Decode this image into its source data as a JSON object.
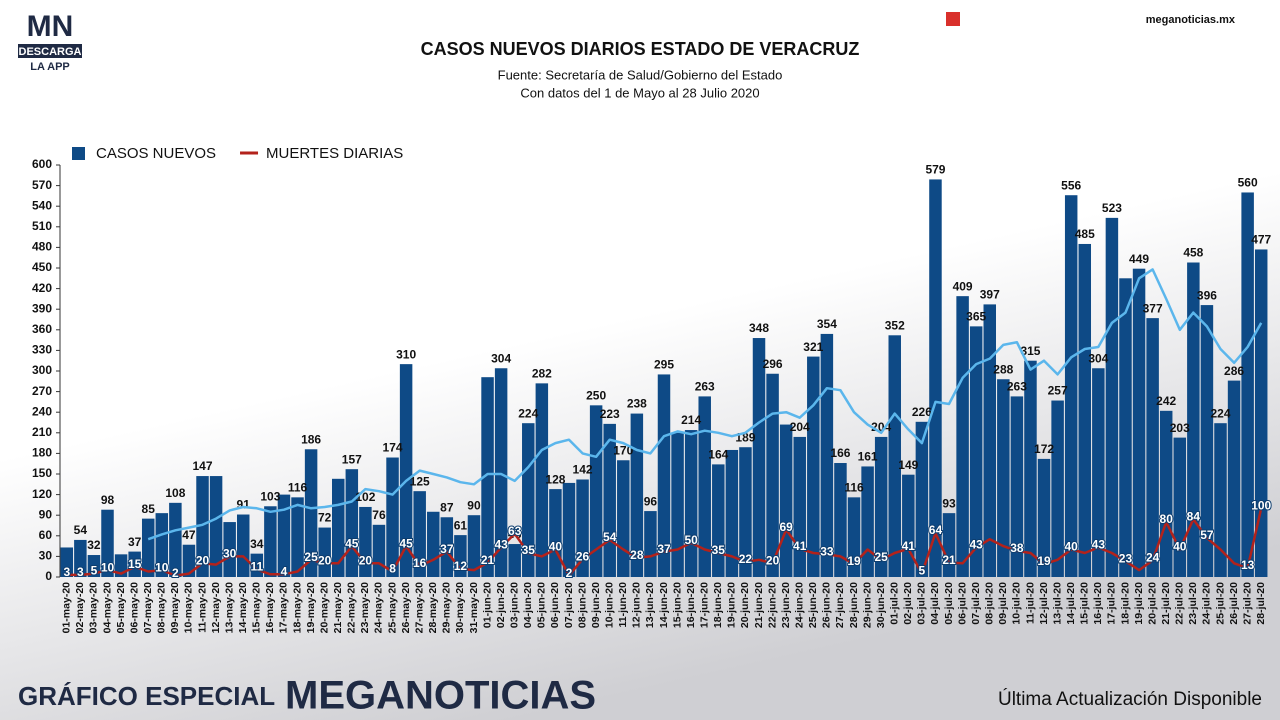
{
  "brand": {
    "logo": "MN",
    "logo_sub": "DESCARGA",
    "logo_app": "LA APP",
    "site": "meganoticias.mx"
  },
  "footer": {
    "left": "GRÁFICO ESPECIAL",
    "brand": "MEGANOTICIAS",
    "right": "Última Actualización Disponible"
  },
  "chart_data": {
    "type": "bar",
    "title": "CASOS NUEVOS DIARIOS ESTADO DE VERACRUZ",
    "subtitle": [
      "Fuente: Secretaría de Salud/Gobierno del Estado",
      "Con datos del 1 de Mayo al 28 Julio 2020"
    ],
    "categories": [
      "01-may-20",
      "02-may-20",
      "03-may-20",
      "04-may-20",
      "05-may-20",
      "06-may-20",
      "07-may-20",
      "08-may-20",
      "09-may-20",
      "10-may-20",
      "11-may-20",
      "12-may-20",
      "13-may-20",
      "14-may-20",
      "15-may-20",
      "16-may-20",
      "17-may-20",
      "18-may-20",
      "19-may-20",
      "20-may-20",
      "21-may-20",
      "22-may-20",
      "23-may-20",
      "24-may-20",
      "25-may-20",
      "26-may-20",
      "27-may-20",
      "28-may-20",
      "29-may-20",
      "30-may-20",
      "31-may-20",
      "01-jun-20",
      "02-jun-20",
      "03-jun-20",
      "04-jun-20",
      "05-jun-20",
      "06-jun-20",
      "07-jun-20",
      "08-jun-20",
      "09-jun-20",
      "10-jun-20",
      "11-jun-20",
      "12-jun-20",
      "13-jun-20",
      "14-jun-20",
      "15-jun-20",
      "16-jun-20",
      "17-jun-20",
      "18-jun-20",
      "19-jun-20",
      "20-jun-20",
      "21-jun-20",
      "22-jun-20",
      "23-jun-20",
      "24-jun-20",
      "25-jun-20",
      "26-jun-20",
      "27-jun-20",
      "28-jun-20",
      "29-jun-20",
      "30-jun-20",
      "01-jul-20",
      "02-jul-20",
      "03-jul-20",
      "04-jul-20",
      "05-jul-20",
      "06-jul-20",
      "07-jul-20",
      "08-jul-20",
      "09-jul-20",
      "10-jul-20",
      "11-jul-20",
      "12-jul-20",
      "13-jul-20",
      "14-jul-20",
      "15-jul-20",
      "16-jul-20",
      "17-jul-20",
      "18-jul-20",
      "19-jul-20",
      "20-jul-20",
      "21-jul-20",
      "22-jul-20",
      "23-jul-20",
      "24-jul-20",
      "25-jul-20",
      "26-jul-20",
      "27-jul-20",
      "28-jul-20"
    ],
    "series": [
      {
        "name": "CASOS NUEVOS",
        "type": "bar",
        "color": "#0e4a86",
        "values": [
          43,
          54,
          32,
          98,
          33,
          37,
          85,
          93,
          108,
          47,
          147,
          147,
          80,
          91,
          34,
          103,
          120,
          116,
          186,
          72,
          143,
          157,
          102,
          76,
          174,
          310,
          125,
          95,
          87,
          61,
          90,
          291,
          304,
          48,
          224,
          282,
          128,
          137,
          142,
          250,
          223,
          170,
          238,
          96,
          295,
          210,
          214,
          263,
          164,
          185,
          189,
          348,
          296,
          222,
          204,
          321,
          354,
          166,
          116,
          161,
          204,
          352,
          149,
          226,
          579,
          93,
          409,
          365,
          397,
          288,
          263,
          315,
          172,
          257,
          556,
          485,
          304,
          523,
          435,
          449,
          377,
          242,
          203,
          458,
          396,
          224,
          286,
          560,
          477
        ],
        "value_labels": [
          null,
          "54",
          "32",
          "98",
          null,
          "37",
          "85",
          null,
          "108",
          "47",
          "147",
          null,
          null,
          "91",
          "34",
          "103",
          null,
          "116",
          "186",
          "72",
          null,
          "157",
          "102",
          "76",
          "174",
          "310",
          "125",
          null,
          "87",
          "61",
          "90",
          null,
          "304",
          "48",
          "224",
          "282",
          "128",
          null,
          "142",
          "250",
          "223",
          "170",
          "238",
          "96",
          "295",
          null,
          "214",
          "263",
          "164",
          null,
          "189",
          "348",
          "296",
          null,
          "204",
          "321",
          "354",
          "166",
          "116",
          "161",
          "204",
          "352",
          "149",
          "226",
          "579",
          "93",
          "409",
          "365",
          "397",
          "288",
          "263",
          "315",
          "172",
          "257",
          "556",
          "485",
          "304",
          "523",
          null,
          "449",
          "377",
          "242",
          "203",
          "458",
          "396",
          "224",
          "286",
          "560",
          "477"
        ]
      },
      {
        "name": "MUERTES DIARIAS",
        "type": "line",
        "color": "#b3221b",
        "values": [
          3,
          3,
          5,
          10,
          5,
          15,
          8,
          10,
          2,
          5,
          20,
          18,
          30,
          30,
          11,
          4,
          4,
          8,
          25,
          20,
          20,
          45,
          20,
          20,
          8,
          45,
          16,
          25,
          37,
          12,
          10,
          21,
          43,
          63,
          35,
          30,
          40,
          2,
          26,
          40,
          54,
          40,
          28,
          30,
          37,
          40,
          50,
          40,
          35,
          30,
          22,
          25,
          20,
          69,
          41,
          35,
          33,
          30,
          19,
          40,
          25,
          35,
          41,
          5,
          64,
          21,
          20,
          43,
          55,
          45,
          38,
          35,
          19,
          25,
          40,
          35,
          43,
          35,
          23,
          10,
          24,
          80,
          40,
          84,
          57,
          40,
          20,
          13,
          100
        ],
        "value_labels": [
          "3",
          "3",
          "5",
          "10",
          null,
          "15",
          null,
          "10",
          "2",
          null,
          "20",
          null,
          "30",
          null,
          "11",
          null,
          "4",
          null,
          "25",
          "20",
          null,
          "45",
          "20",
          null,
          "8",
          "45",
          "16",
          null,
          "37",
          "12",
          null,
          "21",
          "43",
          "63",
          "35",
          null,
          "40",
          "2",
          "26",
          null,
          "54",
          null,
          "28",
          null,
          "37",
          null,
          "50",
          null,
          "35",
          null,
          "22",
          null,
          "20",
          "69",
          "41",
          null,
          "33",
          null,
          "19",
          null,
          "25",
          null,
          "41",
          "5",
          "64",
          "21",
          null,
          "43",
          null,
          null,
          "38",
          null,
          "19",
          null,
          "40",
          null,
          "43",
          null,
          "23",
          null,
          "24",
          "80",
          "40",
          "84",
          "57",
          null,
          null,
          "13",
          "100"
        ]
      },
      {
        "type": "line",
        "color": "#5bb6ec",
        "values": [
          null,
          null,
          null,
          null,
          null,
          null,
          55,
          62,
          68,
          72,
          76,
          85,
          97,
          102,
          100,
          95,
          98,
          105,
          100,
          102,
          105,
          110,
          128,
          125,
          120,
          140,
          155,
          150,
          145,
          138,
          135,
          150,
          150,
          140,
          160,
          185,
          195,
          200,
          180,
          175,
          200,
          195,
          185,
          180,
          205,
          212,
          208,
          213,
          210,
          205,
          210,
          225,
          238,
          240,
          232,
          250,
          275,
          272,
          240,
          222,
          210,
          238,
          215,
          195,
          255,
          252,
          290,
          310,
          318,
          338,
          342,
          302,
          315,
          295,
          320,
          332,
          335,
          370,
          385,
          435,
          448,
          405,
          360,
          385,
          365,
          332,
          312,
          335,
          370
        ]
      }
    ],
    "ylim": [
      0,
      600
    ],
    "yticks": [
      0,
      30,
      60,
      90,
      120,
      150,
      180,
      210,
      240,
      270,
      300,
      330,
      360,
      390,
      420,
      450,
      480,
      510,
      540,
      570,
      600
    ],
    "grid": false,
    "legend": "top-left"
  }
}
